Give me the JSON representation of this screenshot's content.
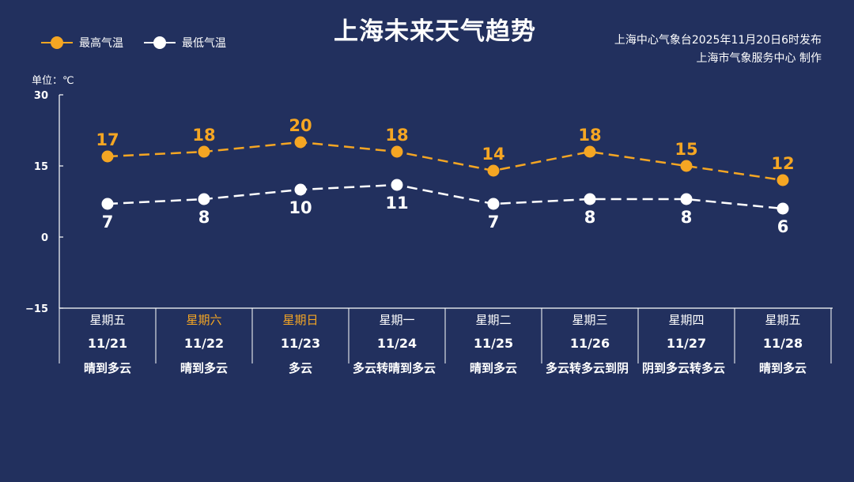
{
  "title": "上海未来天气趋势",
  "source_line1": "上海中心气象台2025年11月20日6时发布",
  "source_line2": "上海市气象服务中心  制作",
  "unit_label": "单位：℃",
  "colors": {
    "background": "#22305e",
    "high": "#f5a623",
    "low": "#ffffff",
    "weekend": "#f5a623"
  },
  "chart_data": {
    "type": "line",
    "title": "上海未来天气趋势",
    "categories": [
      "11/21",
      "11/22",
      "11/23",
      "11/24",
      "11/25",
      "11/26",
      "11/27",
      "11/28"
    ],
    "ylim": [
      -15,
      30
    ],
    "yticks": [
      30,
      15,
      0,
      -15
    ],
    "grid": false,
    "legend_position": "top-left",
    "series": [
      {
        "name": "最高气温",
        "color": "#f5a623",
        "values": [
          17,
          18,
          20,
          18,
          14,
          18,
          15,
          12
        ],
        "label_position": "above"
      },
      {
        "name": "最低气温",
        "color": "#ffffff",
        "values": [
          7,
          8,
          10,
          11,
          7,
          8,
          8,
          6
        ],
        "label_position": "below"
      }
    ]
  },
  "days": [
    {
      "weekday": "星期五",
      "date": "11/21",
      "condition": "晴到多云",
      "weekend": false
    },
    {
      "weekday": "星期六",
      "date": "11/22",
      "condition": "晴到多云",
      "weekend": true
    },
    {
      "weekday": "星期日",
      "date": "11/23",
      "condition": "多云",
      "weekend": true
    },
    {
      "weekday": "星期一",
      "date": "11/24",
      "condition": "多云转晴到多云",
      "weekend": false
    },
    {
      "weekday": "星期二",
      "date": "11/25",
      "condition": "晴到多云",
      "weekend": false
    },
    {
      "weekday": "星期三",
      "date": "11/26",
      "condition": "多云转多云到阴",
      "weekend": false
    },
    {
      "weekday": "星期四",
      "date": "11/27",
      "condition": "阴到多云转多云",
      "weekend": false
    },
    {
      "weekday": "星期五",
      "date": "11/28",
      "condition": "晴到多云",
      "weekend": false
    }
  ]
}
